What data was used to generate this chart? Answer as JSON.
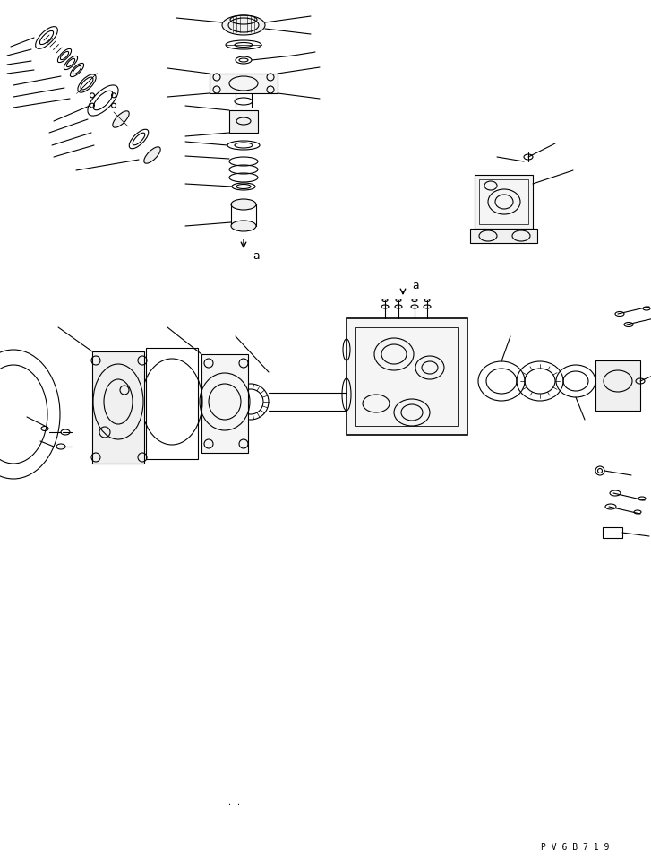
{
  "bg_color": "#ffffff",
  "line_color": "#000000",
  "line_width": 0.8,
  "fig_width": 7.27,
  "fig_height": 9.58,
  "dpi": 100,
  "part_code": "P V 6 B 7 1 9",
  "label_a": "a"
}
